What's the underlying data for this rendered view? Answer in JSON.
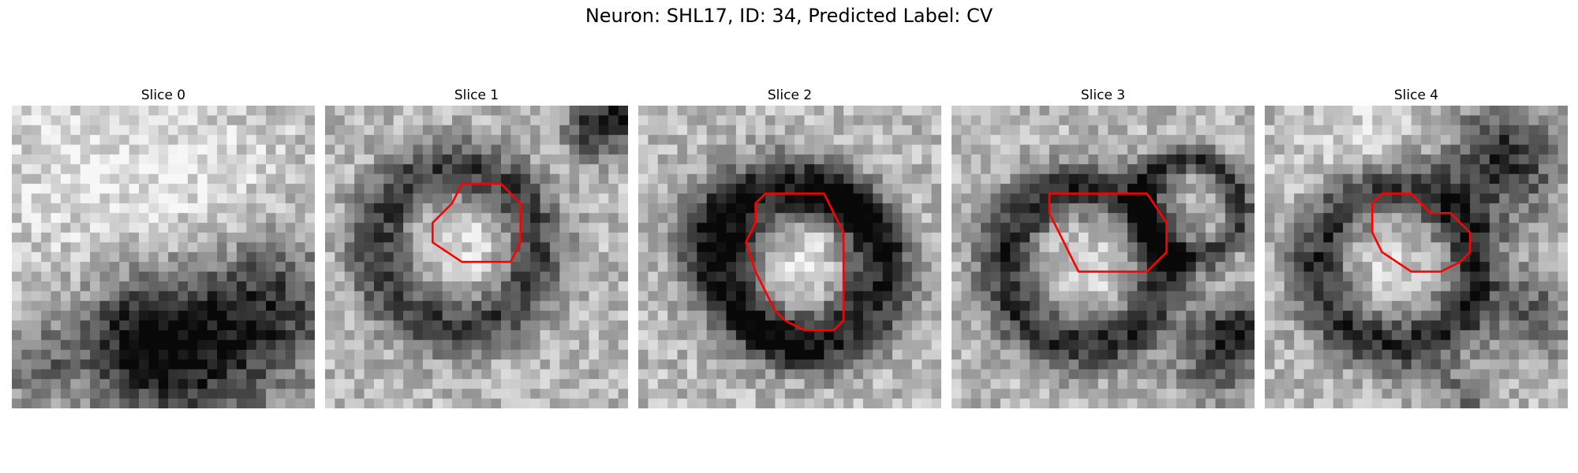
{
  "figure": {
    "title": "Neuron: SHL17, ID: 34, Predicted Label: CV",
    "colors": {
      "background": "#ffffff",
      "contour": "#ff0000",
      "colormap": "grayscale"
    }
  },
  "panels": [
    {
      "title": "Slice 0",
      "has_contour": false
    },
    {
      "title": "Slice 1",
      "has_contour": true
    },
    {
      "title": "Slice 2",
      "has_contour": true
    },
    {
      "title": "Slice 3",
      "has_contour": true
    },
    {
      "title": "Slice 4",
      "has_contour": true
    }
  ]
}
